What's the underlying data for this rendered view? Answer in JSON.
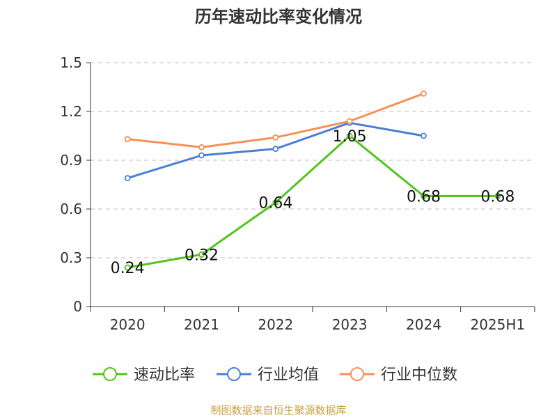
{
  "chart_data": {
    "type": "line",
    "title": "历年速动比率变化情况",
    "categories": [
      "2020",
      "2021",
      "2022",
      "2023",
      "2024",
      "2025H1"
    ],
    "y_ticks": [
      "0",
      "0.3",
      "0.6",
      "0.9",
      "1.2",
      "1.5"
    ],
    "ylim": [
      0,
      1.5
    ],
    "grid": true,
    "legend_position": "bottom",
    "series": [
      {
        "name": "速动比率",
        "color": "#52c41a",
        "values": [
          0.24,
          0.32,
          0.64,
          1.05,
          0.68,
          0.68
        ],
        "labels": [
          "0.24",
          "0.32",
          "0.64",
          "1.05",
          "0.68",
          "0.68"
        ]
      },
      {
        "name": "行业均值",
        "color": "#4a7fd6",
        "values": [
          0.79,
          0.93,
          0.97,
          1.13,
          1.05,
          null
        ]
      },
      {
        "name": "行业中位数",
        "color": "#f79058",
        "values": [
          1.03,
          0.98,
          1.04,
          1.14,
          1.31,
          null
        ]
      }
    ]
  },
  "source": "制图数据来自恒生聚源数据库"
}
